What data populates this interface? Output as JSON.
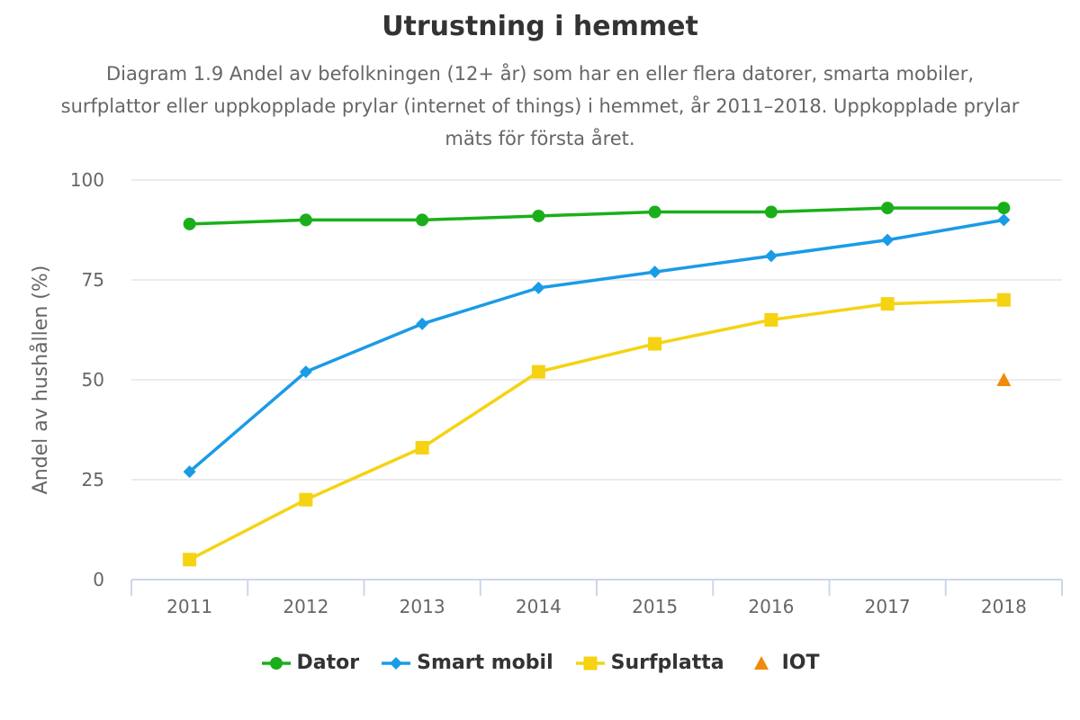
{
  "chart_data": {
    "type": "line",
    "title": "Utrustning i hemmet",
    "subtitle": "Diagram 1.9 Andel av befolkningen (12+ år) som har en eller flera datorer, smarta mobiler, surfplattor eller uppkopplade prylar (internet of things) i hemmet, år 2011–2018. Uppkopplade prylar mäts för första året.",
    "xlabel": "",
    "ylabel": "Andel av hushållen (%)",
    "ylim": [
      0,
      100
    ],
    "yticks": [
      0,
      25,
      50,
      75,
      100
    ],
    "categories": [
      "2011",
      "2012",
      "2013",
      "2014",
      "2015",
      "2016",
      "2017",
      "2018"
    ],
    "series": [
      {
        "name": "Dator",
        "color": "#1aaf1a",
        "marker": "circle",
        "values": [
          89,
          90,
          90,
          91,
          92,
          92,
          93,
          93
        ]
      },
      {
        "name": "Smart mobil",
        "color": "#1a9be6",
        "marker": "diamond",
        "values": [
          27,
          52,
          64,
          73,
          77,
          81,
          85,
          90
        ]
      },
      {
        "name": "Surfplatta",
        "color": "#f5d312",
        "marker": "square",
        "values": [
          5,
          20,
          33,
          52,
          59,
          65,
          69,
          70
        ]
      },
      {
        "name": "IOT",
        "color": "#f08a0c",
        "marker": "triangle",
        "values": [
          null,
          null,
          null,
          null,
          null,
          null,
          null,
          50
        ]
      }
    ],
    "legend_position": "bottom"
  }
}
